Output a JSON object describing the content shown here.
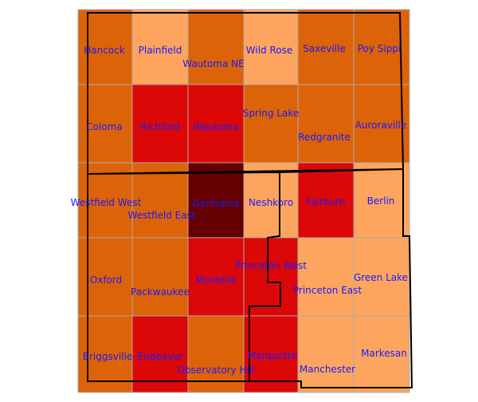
{
  "colors": {
    "light": "#fda55f",
    "medium": "#dd6308",
    "red": "#dc0808",
    "dark": "#660000",
    "label": "#1a1aff",
    "grid_line": "#aaaaaa",
    "county_line": "#000000"
  },
  "townships": [
    {
      "name": "Hancock",
      "fill": "medium"
    },
    {
      "name": "Plainfield",
      "fill": "light"
    },
    {
      "name": "Wautoma NE",
      "fill": "medium"
    },
    {
      "name": "Wild Rose",
      "fill": "light"
    },
    {
      "name": "Saxeville",
      "fill": "medium"
    },
    {
      "name": "Poy Sippi",
      "fill": "medium"
    },
    {
      "name": "Coloma",
      "fill": "medium"
    },
    {
      "name": "Richford",
      "fill": "red"
    },
    {
      "name": "Wautoma",
      "fill": "red"
    },
    {
      "name": "Spring Lake",
      "fill": "medium"
    },
    {
      "name": "Redgranite",
      "fill": "medium"
    },
    {
      "name": "Auroraville",
      "fill": "medium"
    },
    {
      "name": "Westfield West",
      "fill": "medium"
    },
    {
      "name": "Westfield East",
      "fill": "medium"
    },
    {
      "name": "Germania",
      "fill": "dark"
    },
    {
      "name": "Neshkoro",
      "fill": "light"
    },
    {
      "name": "Fairburn",
      "fill": "red"
    },
    {
      "name": "Berlin",
      "fill": "light"
    },
    {
      "name": "Oxford",
      "fill": "medium"
    },
    {
      "name": "Packwaukee",
      "fill": "medium"
    },
    {
      "name": "Montello",
      "fill": "red"
    },
    {
      "name": "Princeton West",
      "fill": "red"
    },
    {
      "name": "Princeton East",
      "fill": "light"
    },
    {
      "name": "Green Lake",
      "fill": "light"
    },
    {
      "name": "Briggsville",
      "fill": "medium"
    },
    {
      "name": "Endeavor",
      "fill": "red"
    },
    {
      "name": "Observatory Hill",
      "fill": "medium"
    },
    {
      "name": "Marquette",
      "fill": "red"
    },
    {
      "name": "Manchester",
      "fill": "light"
    },
    {
      "name": "Markesan",
      "fill": "light"
    }
  ]
}
